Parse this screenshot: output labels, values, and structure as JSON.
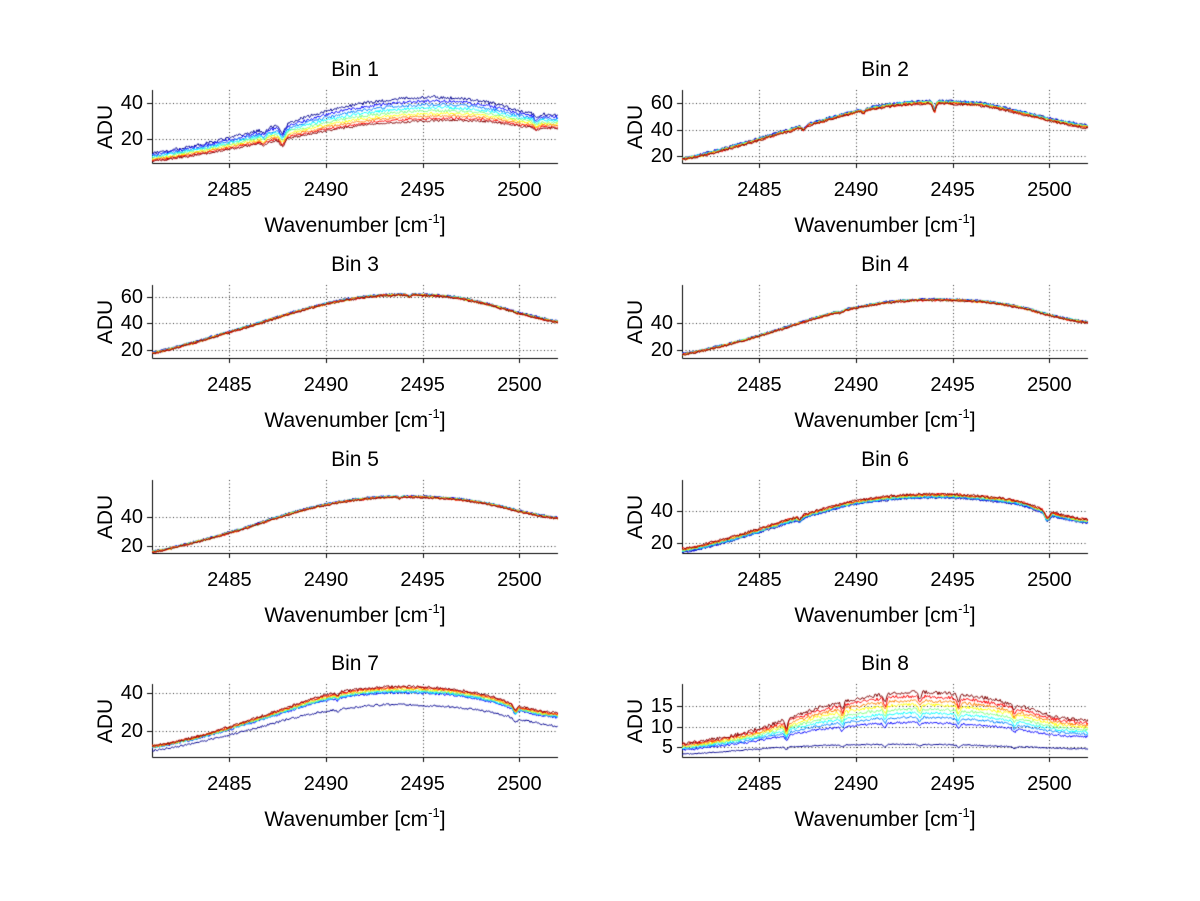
{
  "figure": {
    "background": "#ffffff",
    "grid_style": "dotted",
    "legend": "none",
    "xticks": [
      "2485",
      "2490",
      "2495",
      "2500"
    ],
    "palette": [
      "#000090",
      "#0000ff",
      "#0080ff",
      "#00ffff",
      "#80ff80",
      "#ffff00",
      "#ff8000",
      "#ff0000",
      "#800000"
    ],
    "palette_name": "jet-colormap-series"
  },
  "axis_labels": {
    "x_base": "Wavenumber [cm",
    "x_sup": "-1",
    "x_close": "]",
    "y": "ADU"
  },
  "chart_data": [
    {
      "type": "line",
      "title": "Bin 1",
      "xlabel": "Wavenumber [cm^-1]",
      "ylabel": "ADU",
      "xlim": [
        2481,
        2502
      ],
      "ylim": [
        7,
        47
      ],
      "xticks": [
        2485,
        2490,
        2495,
        2500
      ],
      "yticks": [
        20,
        40
      ],
      "x": [
        2481,
        2482.75,
        2484.5,
        2486.25,
        2488,
        2489.75,
        2491.5,
        2493.25,
        2495,
        2496.75,
        2498.5,
        2500.25,
        2502
      ],
      "envelope_low": [
        8,
        10.5,
        13.5,
        17,
        20.5,
        24,
        27,
        29,
        30,
        30.5,
        29.5,
        27,
        26
      ],
      "envelope_high": [
        12.5,
        15.5,
        19.5,
        24,
        29,
        34.5,
        39,
        41.5,
        43,
        42.5,
        40,
        35,
        33.5
      ],
      "series_fracs": [
        1,
        0.83,
        0.68,
        0.55,
        0.42,
        0.3,
        0.19,
        0.08,
        0
      ],
      "noise": 0.9,
      "dips": [
        {
          "x": 2486.8,
          "depth": 2,
          "width": 0.15
        },
        {
          "x": 2487.75,
          "depth": 5,
          "width": 0.18
        },
        {
          "x": 2500.9,
          "depth": 2.5,
          "width": 0.15
        }
      ]
    },
    {
      "type": "line",
      "title": "Bin 2",
      "xlabel": "Wavenumber [cm^-1]",
      "ylabel": "ADU",
      "xlim": [
        2481,
        2502
      ],
      "ylim": [
        15,
        70
      ],
      "xticks": [
        2485,
        2490,
        2495,
        2500
      ],
      "yticks": [
        20,
        40,
        60
      ],
      "x": [
        2481,
        2482.75,
        2484.5,
        2486.25,
        2488,
        2489.75,
        2491.5,
        2493.25,
        2495,
        2496.75,
        2498.5,
        2500.25,
        2502
      ],
      "envelope_low": [
        17.5,
        23,
        30,
        37.5,
        45,
        52,
        57,
        59.5,
        59.5,
        57.5,
        52,
        46,
        41.5
      ],
      "envelope_high": [
        18.5,
        24.5,
        31.5,
        39,
        46.5,
        53.5,
        59,
        61.5,
        61.5,
        59.5,
        54,
        48,
        43.5
      ],
      "series_fracs": [
        1,
        0.9,
        0.78,
        0.66,
        0.52,
        0.38,
        0.25,
        0.12,
        0
      ],
      "noise": 1.0,
      "dips": [
        {
          "x": 2487.3,
          "depth": 2.5,
          "width": 0.12
        },
        {
          "x": 2490.4,
          "depth": 2,
          "width": 0.1
        },
        {
          "x": 2494.05,
          "depth": 7,
          "width": 0.09
        }
      ]
    },
    {
      "type": "line",
      "title": "Bin 3",
      "xlabel": "Wavenumber [cm^-1]",
      "ylabel": "ADU",
      "xlim": [
        2481,
        2502
      ],
      "ylim": [
        14,
        69
      ],
      "xticks": [
        2485,
        2490,
        2495,
        2500
      ],
      "yticks": [
        20,
        40,
        60
      ],
      "x": [
        2481,
        2482.75,
        2484.5,
        2486.25,
        2488,
        2489.75,
        2491.5,
        2493.25,
        2495,
        2496.75,
        2498.5,
        2500.25,
        2502
      ],
      "envelope_low": [
        17.5,
        23.5,
        31,
        38.5,
        46.5,
        53.5,
        58.5,
        61,
        61,
        59,
        53.5,
        46.5,
        41
      ],
      "envelope_high": [
        18.3,
        24.3,
        31.8,
        39.3,
        47.3,
        54.3,
        59.3,
        61.8,
        61.8,
        59.8,
        54.3,
        47.3,
        41.8
      ],
      "series_fracs": [
        1,
        0.85,
        0.7,
        0.6,
        0.5,
        0.4,
        0.3,
        0.15,
        0
      ],
      "noise": 0.9,
      "dips": [
        {
          "x": 2494.3,
          "depth": 1.5,
          "width": 0.1
        }
      ]
    },
    {
      "type": "line",
      "title": "Bin 4",
      "xlabel": "Wavenumber [cm^-1]",
      "ylabel": "ADU",
      "xlim": [
        2481,
        2502
      ],
      "ylim": [
        14,
        68
      ],
      "xticks": [
        2485,
        2490,
        2495,
        2500
      ],
      "yticks": [
        20,
        40
      ],
      "x": [
        2481,
        2482.75,
        2484.5,
        2486.25,
        2488,
        2489.75,
        2491.5,
        2493.25,
        2495,
        2496.75,
        2498.5,
        2500.25,
        2502
      ],
      "envelope_low": [
        16.5,
        21.5,
        28,
        35.5,
        43.5,
        50,
        54.5,
        56.5,
        56.5,
        55,
        51,
        44.5,
        40
      ],
      "envelope_high": [
        17.3,
        22.3,
        28.8,
        36.3,
        44.3,
        50.8,
        55.3,
        57.3,
        57.3,
        55.8,
        51.8,
        45.3,
        40.8
      ],
      "series_fracs": [
        1,
        0.85,
        0.7,
        0.6,
        0.5,
        0.4,
        0.3,
        0.15,
        0
      ],
      "noise": 0.8,
      "dips": [
        {
          "x": 2489.2,
          "depth": 1.2,
          "width": 0.1
        }
      ]
    },
    {
      "type": "line",
      "title": "Bin 5",
      "xlabel": "Wavenumber [cm^-1]",
      "ylabel": "ADU",
      "xlim": [
        2481,
        2502
      ],
      "ylim": [
        15,
        65
      ],
      "xticks": [
        2485,
        2490,
        2495,
        2500
      ],
      "yticks": [
        20,
        40
      ],
      "x": [
        2481,
        2482.75,
        2484.5,
        2486.25,
        2488,
        2489.75,
        2491.5,
        2493.25,
        2495,
        2496.75,
        2498.5,
        2500.25,
        2502
      ],
      "envelope_low": [
        15.5,
        20.5,
        26.5,
        33.5,
        41,
        47,
        51,
        53,
        53,
        51.5,
        48,
        42.5,
        38.5
      ],
      "envelope_high": [
        16.3,
        21.3,
        27.3,
        34.3,
        41.8,
        47.8,
        51.8,
        53.8,
        53.8,
        52.3,
        48.8,
        43.3,
        39.3
      ],
      "series_fracs": [
        1,
        0.85,
        0.7,
        0.6,
        0.5,
        0.4,
        0.3,
        0.15,
        0
      ],
      "noise": 0.7,
      "dips": [
        {
          "x": 2493.8,
          "depth": 1.2,
          "width": 0.1
        }
      ]
    },
    {
      "type": "line",
      "title": "Bin 6",
      "xlabel": "Wavenumber [cm^-1]",
      "ylabel": "ADU",
      "xlim": [
        2481,
        2502
      ],
      "ylim": [
        14,
        59
      ],
      "xticks": [
        2485,
        2490,
        2495,
        2500
      ],
      "yticks": [
        20,
        40
      ],
      "x": [
        2481,
        2482.75,
        2484.5,
        2486.25,
        2488,
        2489.75,
        2491.5,
        2493.25,
        2495,
        2496.75,
        2498.5,
        2500.25,
        2502
      ],
      "envelope_low": [
        14.5,
        19,
        25,
        31.5,
        38,
        43.5,
        46.5,
        48,
        48,
        46.5,
        43.5,
        36.5,
        32.5
      ],
      "envelope_high": [
        16.7,
        21.2,
        27.2,
        33.7,
        40.2,
        45.7,
        48.7,
        50.2,
        50.2,
        48.7,
        45.7,
        38.7,
        34.7
      ],
      "series_fracs": [
        0,
        0.1,
        0.2,
        0.35,
        0.5,
        0.65,
        0.8,
        0.9,
        1
      ],
      "noise": 0.8,
      "dips": [
        {
          "x": 2487.1,
          "depth": 2,
          "width": 0.12
        },
        {
          "x": 2499.9,
          "depth": 4.5,
          "width": 0.15
        }
      ]
    },
    {
      "type": "line",
      "title": "Bin 7",
      "xlabel": "Wavenumber [cm^-1]",
      "ylabel": "ADU",
      "xlim": [
        2481,
        2502
      ],
      "ylim": [
        6,
        45
      ],
      "xticks": [
        2485,
        2490,
        2495,
        2500
      ],
      "yticks": [
        20,
        40
      ],
      "x": [
        2481,
        2482.75,
        2484.5,
        2486.25,
        2488,
        2489.75,
        2491.5,
        2493.25,
        2495,
        2496.75,
        2498.5,
        2500.25,
        2502
      ],
      "envelope_low": [
        9.5,
        12.5,
        16.5,
        21,
        26,
        30,
        32.5,
        34,
        33.5,
        32.5,
        30,
        25.5,
        22.5
      ],
      "envelope_high": [
        12,
        15.5,
        20.5,
        26.5,
        32.5,
        38.5,
        42,
        43.5,
        43.5,
        42,
        38.5,
        32.5,
        29.5
      ],
      "series_fracs": [
        0,
        0.66,
        0.7,
        0.74,
        0.79,
        0.85,
        0.9,
        0.95,
        1
      ],
      "noise": 0.7,
      "dips": [
        {
          "x": 2490.6,
          "depth": 1.5,
          "width": 0.1
        },
        {
          "x": 2499.8,
          "depth": 2.8,
          "width": 0.12
        }
      ]
    },
    {
      "type": "line",
      "title": "Bin 8",
      "xlabel": "Wavenumber [cm^-1]",
      "ylabel": "ADU",
      "xlim": [
        2481,
        2502
      ],
      "ylim": [
        2.5,
        20.5
      ],
      "xticks": [
        2485,
        2490,
        2495,
        2500
      ],
      "yticks": [
        5,
        10,
        15
      ],
      "x": [
        2481,
        2482.75,
        2484.5,
        2486.25,
        2488,
        2489.75,
        2491.5,
        2493.25,
        2495,
        2496.75,
        2498.5,
        2500.25,
        2502
      ],
      "envelope_low": [
        3.2,
        3.7,
        4.3,
        4.9,
        5.3,
        5.5,
        5.6,
        5.6,
        5.5,
        5.3,
        5,
        4.7,
        4.5
      ],
      "envelope_high": [
        5.8,
        7,
        8.8,
        11.5,
        14.5,
        16.5,
        18,
        18.5,
        18,
        17,
        15,
        12.5,
        11.5
      ],
      "series_fracs": [
        0,
        0.42,
        0.52,
        0.6,
        0.68,
        0.76,
        0.84,
        0.92,
        1
      ],
      "noise": 0.45,
      "dips": [
        {
          "x": 2486.4,
          "depth": 2.2,
          "width": 0.1
        },
        {
          "x": 2489.3,
          "depth": 1.8,
          "width": 0.1
        },
        {
          "x": 2491.5,
          "depth": 2.0,
          "width": 0.1
        },
        {
          "x": 2493.3,
          "depth": 1.6,
          "width": 0.1
        },
        {
          "x": 2495.3,
          "depth": 2.0,
          "width": 0.1
        },
        {
          "x": 2498.2,
          "depth": 1.5,
          "width": 0.1
        }
      ]
    }
  ]
}
